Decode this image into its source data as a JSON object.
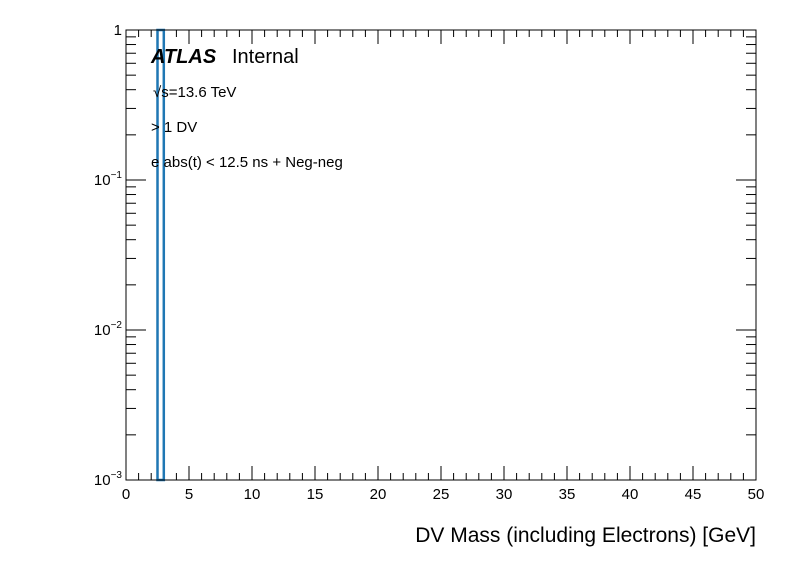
{
  "chart_data": {
    "type": "bar",
    "xlabel": "DV Mass (including Electrons) [GeV]",
    "ylabel": "",
    "xlim": [
      0,
      50
    ],
    "ylim": [
      0.001,
      1
    ],
    "y_scale": "log",
    "grid": false,
    "x_ticks": [
      "0",
      "5",
      "10",
      "15",
      "20",
      "25",
      "30",
      "35",
      "40",
      "45",
      "50"
    ],
    "y_ticks": [
      {
        "label": "1",
        "value": 1,
        "exp": ""
      },
      {
        "label": "10",
        "value": 0.1,
        "exp": "−1"
      },
      {
        "label": "10",
        "value": 0.01,
        "exp": "−2"
      },
      {
        "label": "10",
        "value": 0.001,
        "exp": "−3"
      }
    ],
    "series": [
      {
        "bins": [
          [
            2.5,
            3.0
          ]
        ],
        "values": [
          1.0
        ],
        "color": "#1f77b4"
      }
    ],
    "annotations": {
      "atlas": "ATLAS",
      "internal": "Internal",
      "energy": "√s=13.6 TeV",
      "selection1": "> 1 DV",
      "selection2": "e abs(t) < 12.5 ns + Neg-neg"
    }
  }
}
